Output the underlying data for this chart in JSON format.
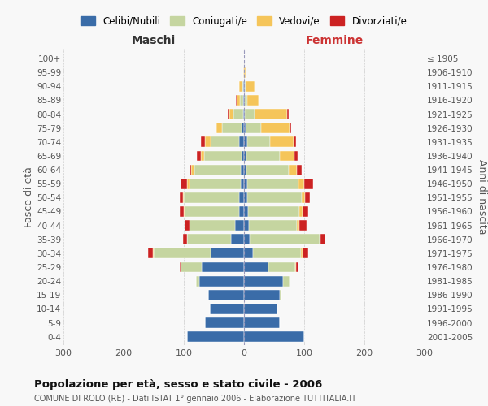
{
  "age_groups": [
    "0-4",
    "5-9",
    "10-14",
    "15-19",
    "20-24",
    "25-29",
    "30-34",
    "35-39",
    "40-44",
    "45-49",
    "50-54",
    "55-59",
    "60-64",
    "65-69",
    "70-74",
    "75-79",
    "80-84",
    "85-89",
    "90-94",
    "95-99",
    "100+"
  ],
  "birth_years": [
    "2001-2005",
    "1996-2000",
    "1991-1995",
    "1986-1990",
    "1981-1985",
    "1976-1980",
    "1971-1975",
    "1966-1970",
    "1961-1965",
    "1956-1960",
    "1951-1955",
    "1946-1950",
    "1941-1945",
    "1936-1940",
    "1931-1935",
    "1926-1930",
    "1921-1925",
    "1916-1920",
    "1911-1915",
    "1906-1910",
    "≤ 1905"
  ],
  "males": {
    "celibe": [
      95,
      65,
      57,
      60,
      75,
      70,
      55,
      22,
      15,
      8,
      8,
      6,
      5,
      4,
      8,
      4,
      2,
      1,
      1,
      0,
      0
    ],
    "coniugato": [
      0,
      0,
      0,
      0,
      5,
      35,
      95,
      72,
      75,
      90,
      92,
      85,
      78,
      62,
      47,
      32,
      15,
      6,
      2,
      0,
      0
    ],
    "vedovo": [
      0,
      0,
      0,
      0,
      0,
      0,
      1,
      1,
      1,
      2,
      2,
      3,
      5,
      5,
      10,
      10,
      8,
      5,
      5,
      1,
      0
    ],
    "divorziato": [
      0,
      0,
      0,
      0,
      0,
      2,
      8,
      6,
      8,
      7,
      5,
      12,
      3,
      8,
      6,
      1,
      2,
      1,
      0,
      0,
      0
    ]
  },
  "females": {
    "nubile": [
      100,
      60,
      55,
      60,
      65,
      40,
      15,
      10,
      8,
      7,
      6,
      5,
      4,
      4,
      5,
      3,
      2,
      2,
      1,
      0,
      0
    ],
    "coniugata": [
      0,
      0,
      0,
      2,
      10,
      45,
      80,
      115,
      80,
      85,
      90,
      85,
      70,
      55,
      38,
      25,
      15,
      4,
      2,
      0,
      0
    ],
    "vedova": [
      0,
      0,
      0,
      0,
      0,
      1,
      2,
      2,
      4,
      5,
      6,
      10,
      14,
      25,
      40,
      48,
      55,
      18,
      15,
      3,
      0
    ],
    "divorziata": [
      0,
      0,
      0,
      0,
      1,
      5,
      10,
      8,
      12,
      10,
      8,
      15,
      8,
      5,
      4,
      2,
      2,
      1,
      0,
      0,
      0
    ]
  },
  "colors": {
    "celibe": "#3a6ca8",
    "coniugato": "#c5d5a0",
    "vedovo": "#f5c55a",
    "divorziato": "#cc2222"
  },
  "xlim": 300,
  "title": "Popolazione per età, sesso e stato civile - 2006",
  "subtitle": "COMUNE DI ROLO (RE) - Dati ISTAT 1° gennaio 2006 - Elaborazione TUTTITALIA.IT",
  "xlabel_left": "Maschi",
  "xlabel_right": "Femmine",
  "ylabel_left": "Fasce di età",
  "ylabel_right": "Anni di nascita",
  "background_color": "#f8f8f8",
  "legend_labels": [
    "Celibi/Nubili",
    "Coniugati/e",
    "Vedovi/e",
    "Divorziati/e"
  ]
}
